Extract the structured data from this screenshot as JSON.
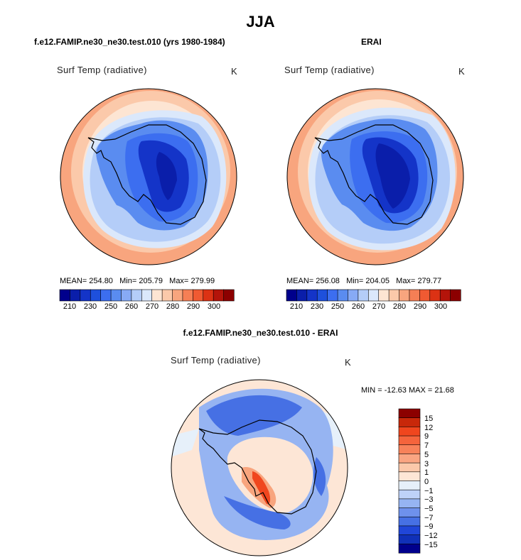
{
  "title": "JJA",
  "panels": [
    {
      "title": "f.e12.FAMIP.ne30_ne30.test.010 (yrs 1980-1984)",
      "variable": "Surf Temp (radiative)",
      "units": "K",
      "stats": {
        "mean_label": "MEAN=",
        "mean": "254.80",
        "min_label": "Min=",
        "min": "205.79",
        "max_label": "Max=",
        "max": "279.99"
      }
    },
    {
      "title": "ERAI",
      "variable": "Surf Temp (radiative)",
      "units": "K",
      "stats": {
        "mean_label": "MEAN=",
        "mean": "256.08",
        "min_label": "Min=",
        "min": "204.05",
        "max_label": "Max=",
        "max": "279.77"
      }
    },
    {
      "title": "f.e12.FAMIP.ne30_ne30.test.010 - ERAI",
      "variable": "Surf Temp (radiative)",
      "units": "K",
      "minmax": "MIN = -12.63 MAX =  21.68"
    }
  ],
  "colorbar_abs": {
    "labels": [
      "210",
      "230",
      "250",
      "260",
      "270",
      "280",
      "290",
      "300"
    ],
    "colors": [
      "#00008c",
      "#0a1eaa",
      "#1434c8",
      "#1e50dc",
      "#3c6ef0",
      "#5a8cf0",
      "#87aaf5",
      "#b4cdf8",
      "#dbe8fb",
      "#fde5d3",
      "#fbc9aa",
      "#f8a57e",
      "#f57f55",
      "#f05a32",
      "#dc3214",
      "#b4140a",
      "#8c0000"
    ]
  },
  "colorbar_diff": {
    "labels": [
      "15",
      "12",
      "9",
      "7",
      "5",
      "3",
      "1",
      "0",
      "−1",
      "−3",
      "−5",
      "−7",
      "−9",
      "−12",
      "−15"
    ],
    "colors": [
      "#8c0000",
      "#c8280a",
      "#f0461e",
      "#f5643c",
      "#f8825a",
      "#faa582",
      "#fbc8aa",
      "#fde6d6",
      "#e6f0fa",
      "#bed2f8",
      "#96b4f2",
      "#6e91ec",
      "#4670e4",
      "#2046d8",
      "#1030b8",
      "#00008c"
    ]
  },
  "map_colors": {
    "ocean_warm": "#f8a57e",
    "ocean_mid": "#fbc9aa",
    "ocean_cool": "#fde5d3",
    "ocean_cold": "#dbe8fb",
    "ice_edge": "#b4cdf8",
    "ice": "#5a8cf0",
    "coast_cold": "#3c6ef0",
    "interior": "#1e50dc",
    "deep": "#1434c8",
    "core": "#0a1eaa",
    "diff_bg": "#fde6d6",
    "diff_neutral": "#e6f0fa",
    "diff_blue": "#4670e4",
    "diff_blue_light": "#96b4f2",
    "diff_red": "#f0461e",
    "diff_red_light": "#f8a57e"
  }
}
